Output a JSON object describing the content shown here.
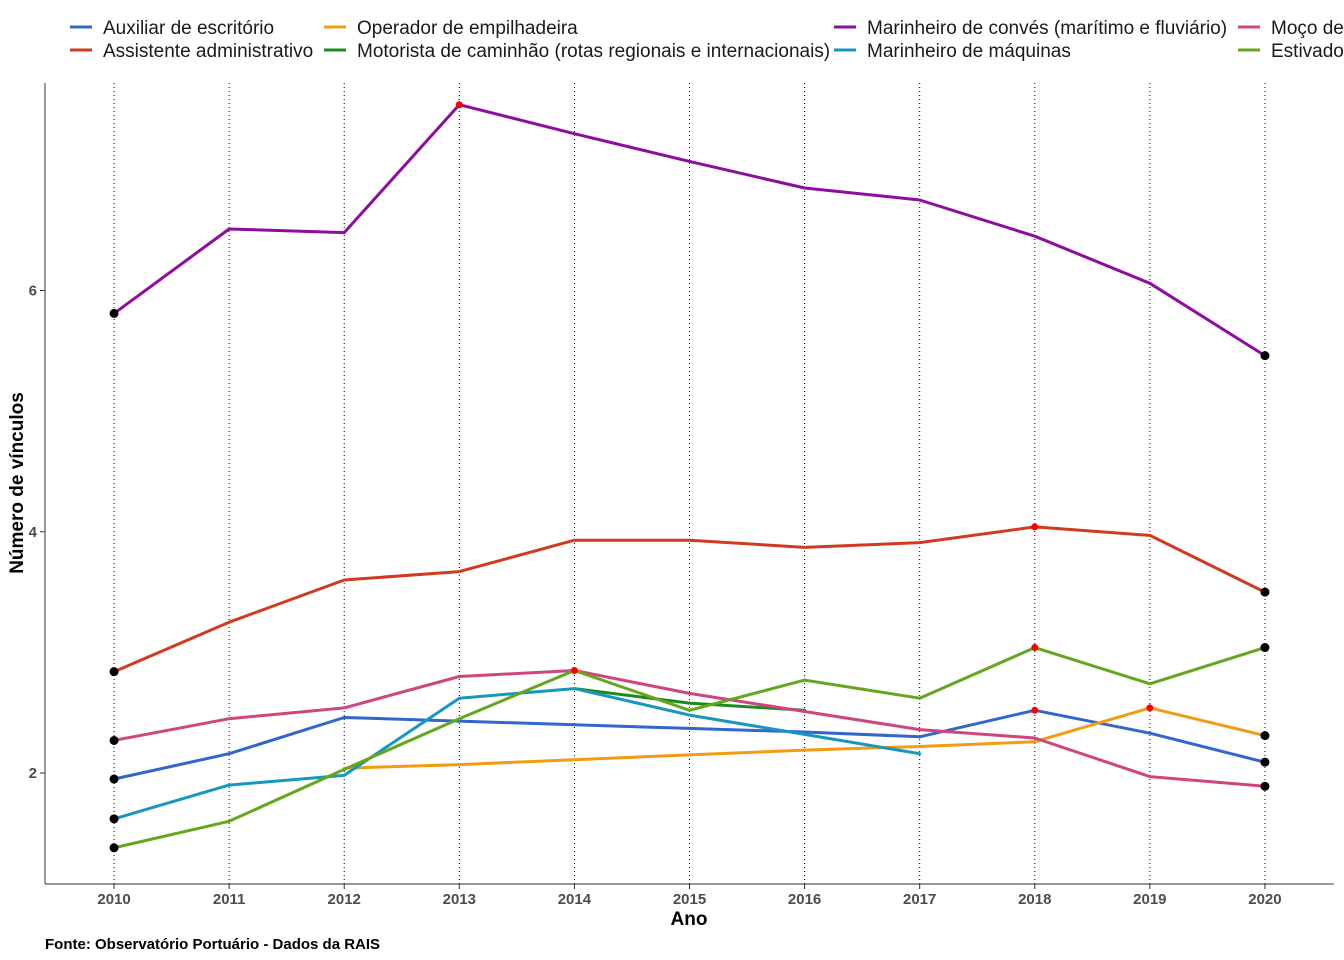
{
  "chart_data": {
    "type": "line",
    "title": "",
    "xlabel": "Ano",
    "ylabel": "Número de vínculos",
    "caption": "Fonte: Observatório Portuário - Dados da RAIS",
    "x": [
      2010,
      2011,
      2012,
      2013,
      2014,
      2015,
      2016,
      2017,
      2018,
      2019,
      2020
    ],
    "x_ticks": [
      "2010",
      "2011",
      "2012",
      "2013",
      "2014",
      "2015",
      "2016",
      "2017",
      "2018",
      "2019",
      "2020"
    ],
    "y_ticks": [
      "2",
      "4",
      "6"
    ],
    "y_tick_values": [
      2,
      4,
      6
    ],
    "ylim": [
      1.08,
      7.72
    ],
    "xlim": [
      2009.4,
      2020.6
    ],
    "grid": "vertical dotted lines at each year",
    "legend_position": "top",
    "series": [
      {
        "name": "Auxiliar de escritório",
        "color": "#3366CC",
        "values": [
          1.95,
          2.16,
          2.46,
          2.43,
          2.4,
          2.37,
          2.34,
          2.3,
          2.52,
          2.33,
          2.09
        ],
        "point_markers": [
          {
            "x": 2010,
            "marker": "black"
          },
          {
            "x": 2018,
            "marker": "red"
          },
          {
            "x": 2020,
            "marker": "black"
          }
        ]
      },
      {
        "name": "Assistente administrativo",
        "color": "#D03B1F",
        "values": [
          2.84,
          3.25,
          3.6,
          3.67,
          3.93,
          3.93,
          3.87,
          3.91,
          4.04,
          3.97,
          3.5
        ],
        "point_markers": [
          {
            "x": 2010,
            "marker": "black"
          },
          {
            "x": 2018,
            "marker": "red"
          },
          {
            "x": 2020,
            "marker": "black"
          }
        ]
      },
      {
        "name": "Operador de empilhadeira",
        "color": "#F39C12",
        "values": [
          null,
          null,
          2.04,
          2.07,
          2.11,
          2.15,
          2.19,
          2.22,
          2.26,
          2.54,
          2.31
        ],
        "point_markers": [
          {
            "x": 2019,
            "marker": "red"
          },
          {
            "x": 2020,
            "marker": "black"
          }
        ]
      },
      {
        "name": "Motorista de caminhão (rotas regionais e internacionais)",
        "color": "#1D8A1D",
        "values": [
          null,
          null,
          null,
          null,
          2.7,
          2.58,
          2.52,
          null,
          null,
          null,
          null
        ],
        "point_markers": []
      },
      {
        "name": "Marinheiro de convés (marítimo e fluviário)",
        "color": "#8E0C9E",
        "values": [
          5.81,
          6.51,
          6.48,
          7.54,
          7.3,
          7.07,
          6.85,
          6.75,
          6.45,
          6.06,
          5.46
        ],
        "point_markers": [
          {
            "x": 2010,
            "marker": "black"
          },
          {
            "x": 2013,
            "marker": "red"
          },
          {
            "x": 2020,
            "marker": "black"
          }
        ]
      },
      {
        "name": "Marinheiro de máquinas",
        "color": "#1797C0",
        "values": [
          1.62,
          1.9,
          1.98,
          2.62,
          2.7,
          2.48,
          2.32,
          2.16,
          null,
          null,
          null
        ],
        "point_markers": [
          {
            "x": 2010,
            "marker": "black"
          }
        ]
      },
      {
        "name": "Moço de",
        "color": "#D0457F",
        "values": [
          2.27,
          2.45,
          2.54,
          2.8,
          2.85,
          2.66,
          2.51,
          2.36,
          2.29,
          1.97,
          1.89
        ],
        "point_markers": [
          {
            "x": 2010,
            "marker": "black"
          },
          {
            "x": 2014,
            "marker": "red"
          },
          {
            "x": 2020,
            "marker": "black"
          }
        ]
      },
      {
        "name": "Estivador",
        "color": "#66A61E",
        "values": [
          1.38,
          1.6,
          2.03,
          2.45,
          2.85,
          2.52,
          2.77,
          2.62,
          3.04,
          2.74,
          3.04
        ],
        "point_markers": [
          {
            "x": 2010,
            "marker": "black"
          },
          {
            "x": 2018,
            "marker": "red"
          },
          {
            "x": 2020,
            "marker": "black"
          }
        ]
      }
    ]
  }
}
